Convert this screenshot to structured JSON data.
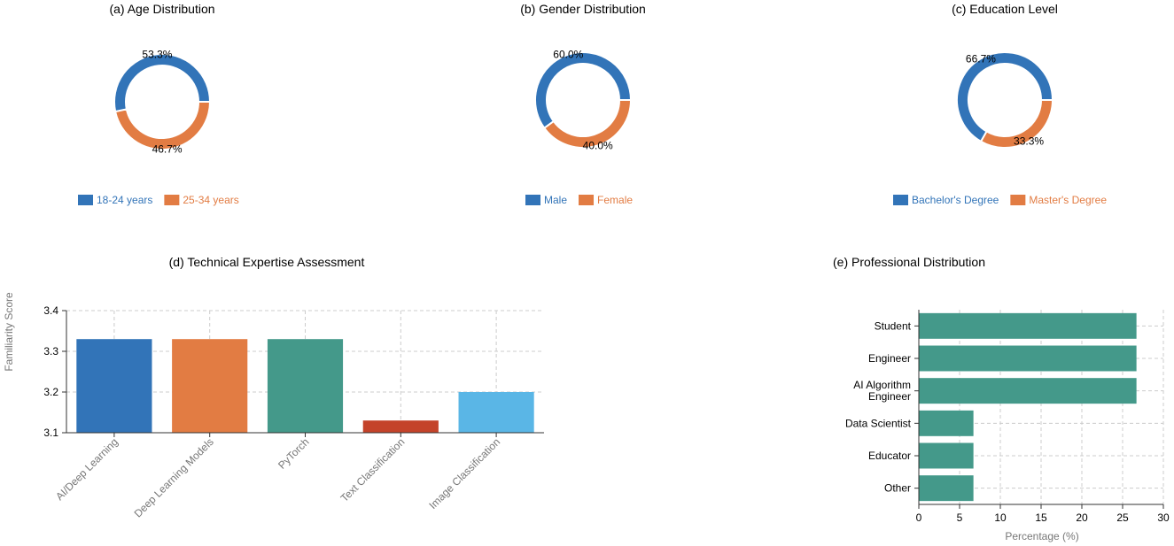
{
  "colors": {
    "blue": "#3274b8",
    "orange": "#e27c43",
    "teal": "#44998a",
    "red": "#c4432a",
    "lightblue": "#5ab6e6",
    "grid": "#cccccc",
    "axis": "#333333",
    "text": "#333333",
    "muted": "#777777"
  },
  "chart_data": [
    {
      "type": "pie",
      "title": "(a) Age Distribution",
      "labels": [
        "18-24 years",
        "25-34 years"
      ],
      "values": [
        53.3,
        46.7
      ],
      "value_labels": [
        "53.3%",
        "46.7%"
      ],
      "colors": [
        "#3274b8",
        "#e27c43"
      ],
      "legend": "bottom"
    },
    {
      "type": "pie",
      "title": "(b) Gender Distribution",
      "labels": [
        "Male",
        "Female"
      ],
      "values": [
        60.0,
        40.0
      ],
      "value_labels": [
        "60.0%",
        "40.0%"
      ],
      "colors": [
        "#3274b8",
        "#e27c43"
      ],
      "legend": "bottom"
    },
    {
      "type": "pie",
      "title": "(c) Education Level",
      "labels": [
        "Bachelor's Degree",
        "Master's Degree"
      ],
      "values": [
        66.7,
        33.3
      ],
      "value_labels": [
        "66.7%",
        "33.3%"
      ],
      "colors": [
        "#3274b8",
        "#e27c43"
      ],
      "legend": "bottom"
    },
    {
      "type": "bar",
      "title": "(d) Technical Expertise Assessment",
      "ylabel": "Familiarity Score",
      "xlabel": "",
      "categories": [
        "AI/Deep Learning",
        "Deep Learning Models",
        "PyTorch",
        "Text Classification",
        "Image Classification"
      ],
      "values": [
        3.33,
        3.33,
        3.33,
        3.13,
        3.2
      ],
      "colors": [
        "#3274b8",
        "#e27c43",
        "#44998a",
        "#c4432a",
        "#5ab6e6"
      ],
      "ylim": [
        3.1,
        3.4
      ],
      "yticks": [
        "3.1",
        "3.2",
        "3.3",
        "3.4"
      ],
      "grid": true
    },
    {
      "type": "bar",
      "orientation": "horizontal",
      "title": "(e) Professional Distribution",
      "xlabel": "Percentage (%)",
      "ylabel": "",
      "categories": [
        "Student",
        "Engineer",
        "AI Algorithm Engineer",
        "Data Scientist",
        "Educator",
        "Other"
      ],
      "category_lines": [
        [
          "Student"
        ],
        [
          "Engineer"
        ],
        [
          "AI Algorithm",
          "Engineer"
        ],
        [
          "Data Scientist"
        ],
        [
          "Educator"
        ],
        [
          "Other"
        ]
      ],
      "values": [
        26.7,
        26.7,
        26.7,
        6.7,
        6.7,
        6.7
      ],
      "color": "#44998a",
      "xlim": [
        0,
        30
      ],
      "xticks": [
        "0",
        "5",
        "10",
        "15",
        "20",
        "25",
        "30"
      ],
      "grid": true
    }
  ]
}
